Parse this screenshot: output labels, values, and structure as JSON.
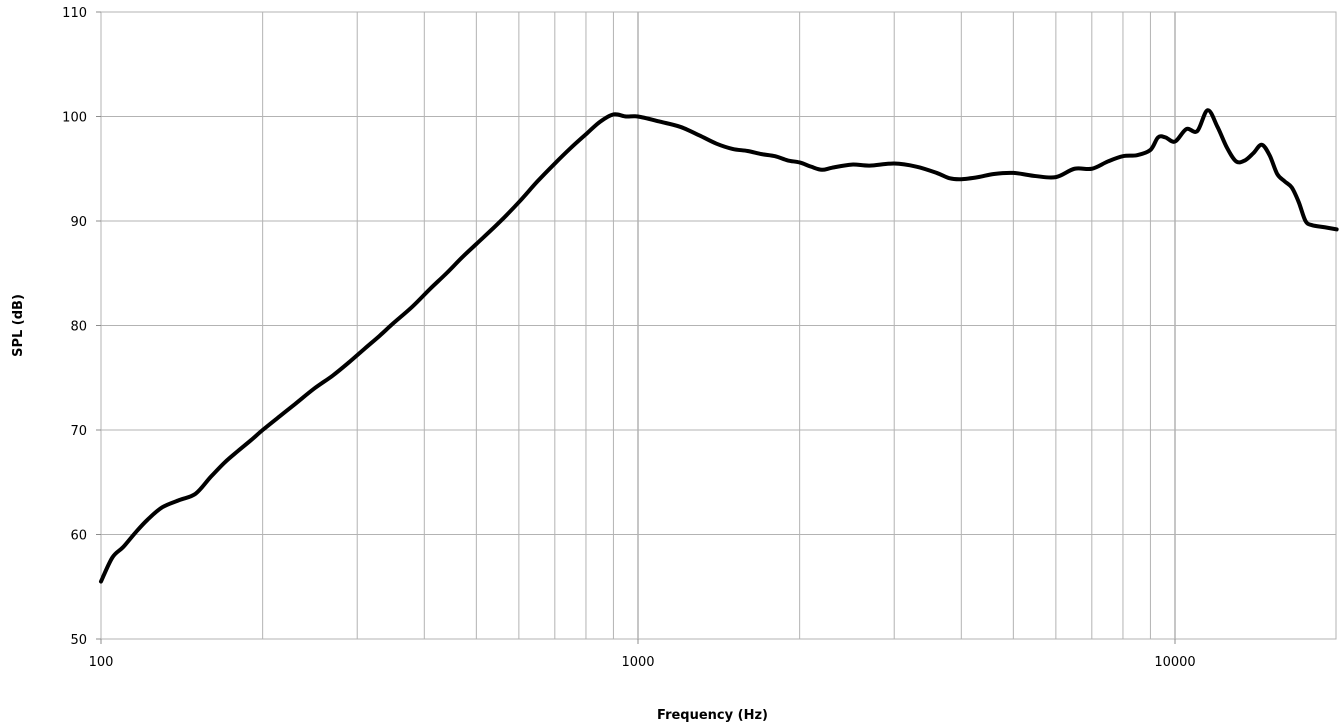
{
  "chart_data": {
    "type": "line",
    "title": "",
    "xlabel": "Frequency (Hz)",
    "ylabel": "SPL (dB)",
    "x_scale": "log",
    "xlim": [
      100,
      20000
    ],
    "ylim": [
      50,
      110
    ],
    "x_tick_labels": [
      "100",
      "1000",
      "10000"
    ],
    "y_tick_labels": [
      "50",
      "60",
      "70",
      "80",
      "90",
      "100",
      "110"
    ],
    "grid": true,
    "legend": "none",
    "line_color": "#000000",
    "grid_color": "#b3b3b3",
    "series": [
      {
        "x": [
          100,
          105,
          110,
          116,
          122,
          130,
          140,
          150,
          160,
          170,
          180,
          190,
          200,
          215,
          230,
          250,
          270,
          290,
          310,
          330,
          350,
          380,
          410,
          440,
          470,
          500,
          550,
          600,
          650,
          700,
          750,
          800,
          850,
          900,
          950,
          1000,
          1100,
          1200,
          1300,
          1400,
          1500,
          1600,
          1700,
          1800,
          1900,
          2000,
          2100,
          2200,
          2300,
          2500,
          2700,
          3000,
          3300,
          3600,
          3800,
          4000,
          4300,
          4600,
          5000,
          5500,
          6000,
          6500,
          7000,
          7500,
          8000,
          8500,
          9000,
          9300,
          9600,
          10000,
          10500,
          11000,
          11500,
          12000,
          12500,
          13000,
          13500,
          14000,
          14500,
          15000,
          15500,
          16000,
          16500,
          17000,
          17500,
          18000,
          19000,
          20000
        ],
        "y": [
          55.5,
          57.8,
          58.8,
          60.2,
          61.4,
          62.6,
          63.3,
          63.9,
          65.5,
          66.9,
          68.0,
          69.0,
          70.0,
          71.3,
          72.5,
          74.0,
          75.2,
          76.5,
          77.8,
          79.0,
          80.2,
          81.8,
          83.5,
          85.0,
          86.5,
          87.8,
          89.8,
          91.8,
          93.8,
          95.5,
          97.0,
          98.3,
          99.5,
          100.2,
          100.0,
          100.0,
          99.5,
          99.0,
          98.2,
          97.4,
          96.9,
          96.7,
          96.4,
          96.2,
          95.8,
          95.6,
          95.2,
          94.9,
          95.1,
          95.4,
          95.3,
          95.5,
          95.2,
          94.6,
          94.1,
          94.0,
          94.2,
          94.5,
          94.6,
          94.3,
          94.2,
          95.0,
          95.0,
          95.7,
          96.2,
          96.3,
          96.8,
          98.0,
          98.0,
          97.6,
          98.8,
          98.6,
          100.6,
          99.0,
          97.0,
          95.7,
          95.8,
          96.5,
          97.3,
          96.3,
          94.5,
          93.8,
          93.2,
          91.8,
          90.0,
          89.6,
          89.4,
          89.2
        ]
      }
    ]
  }
}
